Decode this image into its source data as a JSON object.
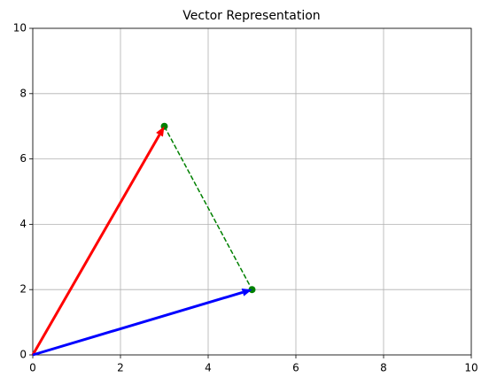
{
  "chart_data": {
    "type": "vector",
    "title": "Vector Representation",
    "xlim": [
      0,
      10
    ],
    "ylim": [
      0,
      10
    ],
    "xticks": [
      0,
      2,
      4,
      6,
      8,
      10
    ],
    "yticks": [
      0,
      2,
      4,
      6,
      8,
      10
    ],
    "grid": true,
    "vectors": [
      {
        "color": "#ff0000",
        "x0": 0,
        "y0": 0,
        "x": 3,
        "y": 7
      },
      {
        "color": "#0000ff",
        "x0": 0,
        "y0": 0,
        "x": 5,
        "y": 2
      }
    ],
    "series": [
      {
        "color": "#008000",
        "x": [
          3,
          5
        ],
        "values": [
          7,
          2
        ],
        "dashed": true
      }
    ]
  }
}
